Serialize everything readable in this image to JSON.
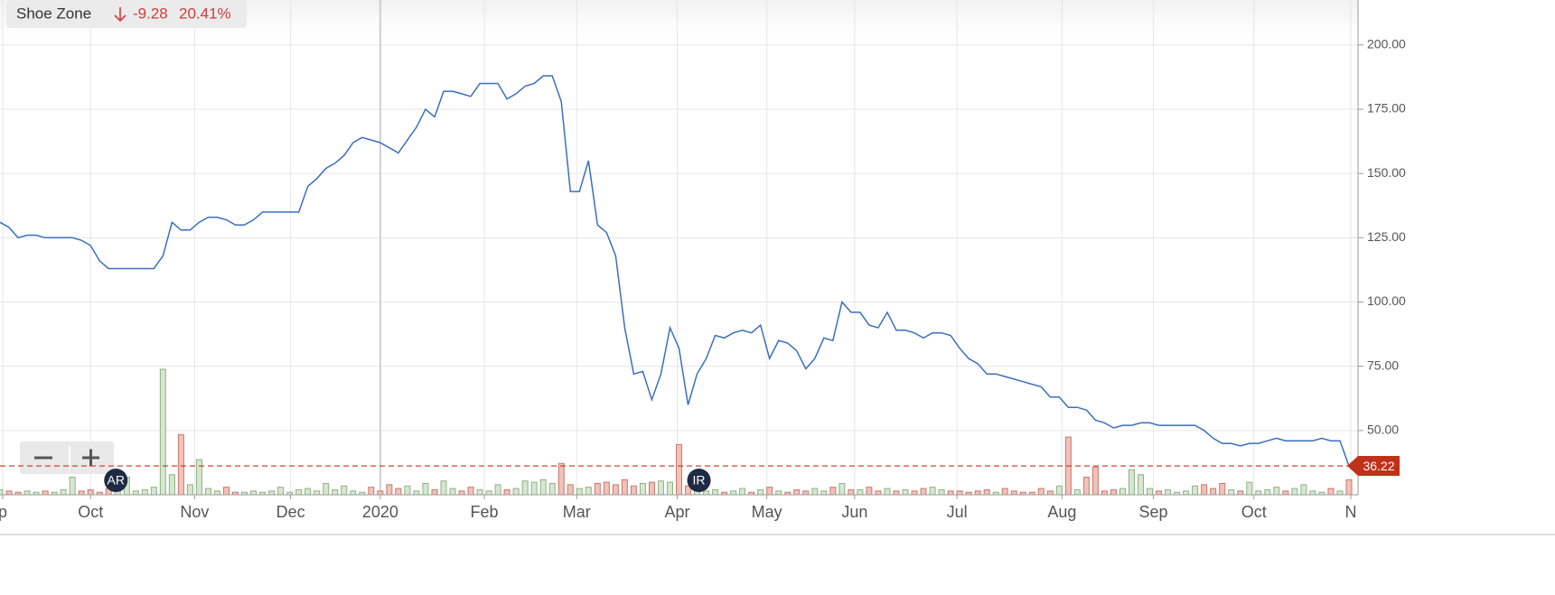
{
  "chart_data": {
    "type": "line",
    "legend": {
      "name": "Shoe Zone",
      "change": "-9.28",
      "change_pct": "20.41%"
    },
    "xlim": [
      0,
      150
    ],
    "xticks": [
      {
        "value": 0.3,
        "label": "p"
      },
      {
        "value": 10,
        "label": "Oct"
      },
      {
        "value": 21.5,
        "label": "Nov"
      },
      {
        "value": 32.1,
        "label": "Dec"
      },
      {
        "value": 42,
        "label": "2020"
      },
      {
        "value": 53.5,
        "label": "Feb"
      },
      {
        "value": 63.7,
        "label": "Mar"
      },
      {
        "value": 74.8,
        "label": "Apr"
      },
      {
        "value": 84.7,
        "label": "May"
      },
      {
        "value": 94.4,
        "label": "Jun"
      },
      {
        "value": 105.7,
        "label": "Jul"
      },
      {
        "value": 117.3,
        "label": "Aug"
      },
      {
        "value": 127.4,
        "label": "Sep"
      },
      {
        "value": 138.5,
        "label": "Oct"
      },
      {
        "value": 149.2,
        "label": "N"
      }
    ],
    "ylim": [
      25,
      217.5
    ],
    "yticks": [
      {
        "value": 50,
        "label": "50.00"
      },
      {
        "value": 75,
        "label": "75.00"
      },
      {
        "value": 100,
        "label": "100.00"
      },
      {
        "value": 125,
        "label": "125.00"
      },
      {
        "value": 150,
        "label": "150.00"
      },
      {
        "value": 175,
        "label": "175.00"
      },
      {
        "value": 200,
        "label": "200.00"
      }
    ],
    "y2lim": [
      0,
      100
    ],
    "grid": true,
    "series": [
      {
        "name": "Shoe Zone",
        "color": "#3a6fbf",
        "values": [
          131,
          129,
          125,
          126,
          126,
          125,
          125,
          125,
          125,
          124,
          122,
          116,
          113,
          113,
          113,
          113,
          113,
          113,
          118,
          131,
          128,
          128,
          131,
          133,
          133,
          132,
          130,
          130,
          132,
          135,
          135,
          135,
          135,
          135,
          145,
          148,
          152,
          154,
          157,
          162,
          164,
          163,
          162,
          160,
          158,
          163,
          168,
          175,
          172,
          182,
          182,
          181,
          180,
          185,
          185,
          185,
          179,
          181,
          184,
          185,
          188,
          188,
          178,
          143,
          143,
          155,
          130,
          127,
          118,
          90,
          72,
          73,
          62,
          72,
          90,
          82,
          60,
          72,
          78,
          87,
          86,
          88,
          89,
          88,
          91,
          78,
          85,
          84,
          81,
          74,
          78,
          86,
          85,
          100,
          96,
          96,
          91,
          90,
          96,
          89,
          89,
          88,
          86,
          88,
          88,
          87,
          82,
          78,
          76,
          72,
          72,
          71,
          70,
          69,
          68,
          67,
          63,
          63,
          59,
          59,
          58,
          54,
          53,
          51,
          52,
          52,
          53,
          53,
          52,
          52,
          52,
          52,
          52,
          50,
          47,
          45,
          45,
          44,
          45,
          45,
          46,
          47,
          46,
          46,
          46,
          46,
          47,
          46,
          46,
          36.22
        ]
      },
      {
        "name": "Volume",
        "axis": "y2",
        "up_color": "#d5e8cf",
        "down_color": "#f2c1b8",
        "values": [
          4,
          3,
          2,
          3,
          2,
          3,
          2,
          4,
          14,
          3,
          4,
          2,
          5,
          3,
          14,
          3,
          4,
          6,
          100,
          16,
          48,
          8,
          28,
          5,
          3,
          6,
          2,
          2,
          3,
          2,
          3,
          6,
          2,
          4,
          5,
          3,
          9,
          4,
          7,
          3,
          2,
          6,
          3,
          8,
          5,
          7,
          3,
          9,
          4,
          11,
          5,
          3,
          6,
          4,
          3,
          8,
          4,
          5,
          11,
          10,
          12,
          9,
          25,
          8,
          5,
          6,
          9,
          10,
          8,
          12,
          7,
          9,
          10,
          11,
          10,
          40,
          7,
          5,
          3,
          4,
          2,
          3,
          5,
          2,
          4,
          6,
          3,
          2,
          4,
          3,
          5,
          3,
          6,
          9,
          4,
          4,
          6,
          3,
          5,
          3,
          4,
          3,
          5,
          6,
          4,
          3,
          3,
          2,
          3,
          4,
          2,
          5,
          3,
          2,
          2,
          5,
          3,
          7,
          46,
          4,
          14,
          22,
          3,
          4,
          5,
          20,
          16,
          5,
          3,
          4,
          2,
          3,
          7,
          8,
          5,
          9,
          4,
          3,
          10,
          3,
          4,
          6,
          3,
          5,
          8,
          3,
          2,
          5,
          3,
          12
        ]
      }
    ],
    "annotations": [
      {
        "label": "AR",
        "x": 12.8
      },
      {
        "label": "IR",
        "x": 77.2
      }
    ]
  }
}
